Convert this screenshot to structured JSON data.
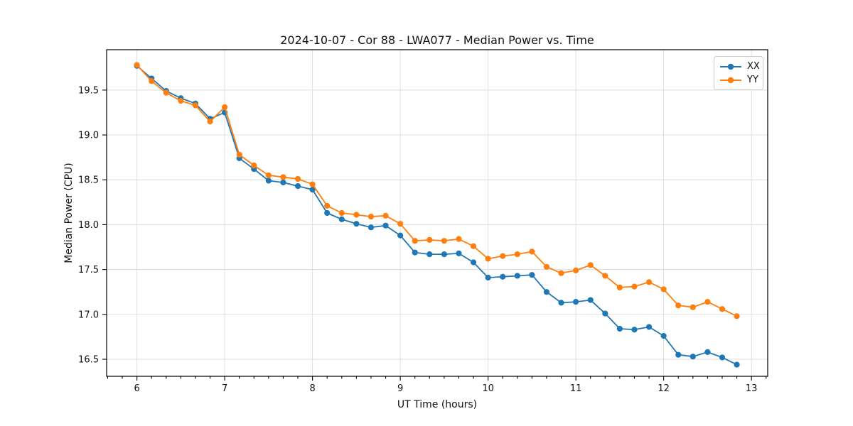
{
  "chart_data": {
    "type": "line",
    "title": "2024-10-07 - Cor 88 - LWA077 - Median Power vs. Time",
    "xlabel": "UT Time (hours)",
    "ylabel": "Median Power (CPU)",
    "xlim": [
      5.655,
      13.185
    ],
    "ylim": [
      16.31,
      19.95
    ],
    "xticks": [
      6,
      7,
      8,
      9,
      10,
      11,
      12,
      13
    ],
    "yticks": [
      16.5,
      17.0,
      17.5,
      18.0,
      18.5,
      19.0,
      19.5
    ],
    "minor_xticks_per_hour": 6,
    "grid": true,
    "grid_color": "#dcdcdc",
    "legend_position": "upper right",
    "x": [
      6.0,
      6.1667,
      6.3333,
      6.5,
      6.6667,
      6.8333,
      7.0,
      7.1667,
      7.3333,
      7.5,
      7.6667,
      7.8333,
      8.0,
      8.1667,
      8.3333,
      8.5,
      8.6667,
      8.8333,
      9.0,
      9.1667,
      9.3333,
      9.5,
      9.6667,
      9.8333,
      10.0,
      10.1667,
      10.3333,
      10.5,
      10.6667,
      10.8333,
      11.0,
      11.1667,
      11.3333,
      11.5,
      11.6667,
      11.8333,
      12.0,
      12.1667,
      12.3333,
      12.5,
      12.6667,
      12.8333
    ],
    "series": [
      {
        "name": "XX",
        "color": "#1f77b4",
        "values": [
          19.77,
          19.63,
          19.49,
          19.41,
          19.35,
          19.18,
          19.25,
          18.74,
          18.62,
          18.49,
          18.47,
          18.43,
          18.39,
          18.13,
          18.06,
          18.01,
          17.97,
          17.99,
          17.88,
          17.69,
          17.67,
          17.67,
          17.68,
          17.58,
          17.41,
          17.42,
          17.43,
          17.44,
          17.25,
          17.13,
          17.14,
          17.16,
          17.01,
          16.84,
          16.83,
          16.86,
          16.76,
          16.55,
          16.53,
          16.58,
          16.52,
          16.44
        ]
      },
      {
        "name": "YY",
        "color": "#ff7f0e",
        "values": [
          19.78,
          19.6,
          19.47,
          19.38,
          19.33,
          19.15,
          19.31,
          18.78,
          18.66,
          18.55,
          18.53,
          18.51,
          18.45,
          18.21,
          18.13,
          18.11,
          18.09,
          18.1,
          18.01,
          17.82,
          17.83,
          17.82,
          17.84,
          17.76,
          17.62,
          17.65,
          17.67,
          17.7,
          17.53,
          17.46,
          17.49,
          17.55,
          17.43,
          17.3,
          17.31,
          17.36,
          17.28,
          17.1,
          17.08,
          17.14,
          17.06,
          16.98
        ]
      }
    ]
  },
  "style": {
    "axis_color": "#000000",
    "text_color": "#111111",
    "background": "#ffffff"
  }
}
